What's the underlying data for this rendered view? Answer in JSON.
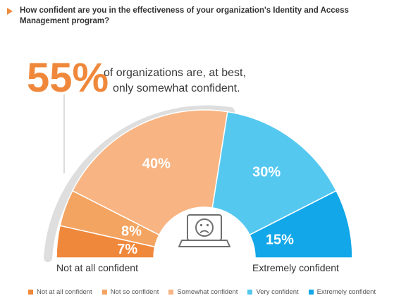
{
  "question": "How confident are you in the effectiveness of your organization's Identity and Access Management program?",
  "callout": {
    "value": "55%",
    "line1": "of organizations are, at best,",
    "line2": "only somewhat confident."
  },
  "icon": "sad-face-laptop-icon",
  "chart_data": {
    "type": "pie",
    "subtype": "half-donut",
    "categories": [
      "Not at all confident",
      "Not so confident",
      "Somewhat confident",
      "Very confident",
      "Extremely confident"
    ],
    "values": [
      7,
      8,
      40,
      30,
      15
    ],
    "labels": [
      "7%",
      "8%",
      "40%",
      "30%",
      "15%"
    ],
    "colors": [
      "#f0883b",
      "#f4a461",
      "#f8b482",
      "#55c8f0",
      "#12a7e8"
    ],
    "axis_left_label": "Not at all confident",
    "axis_right_label": "Extremely confident",
    "legend_position": "bottom"
  }
}
